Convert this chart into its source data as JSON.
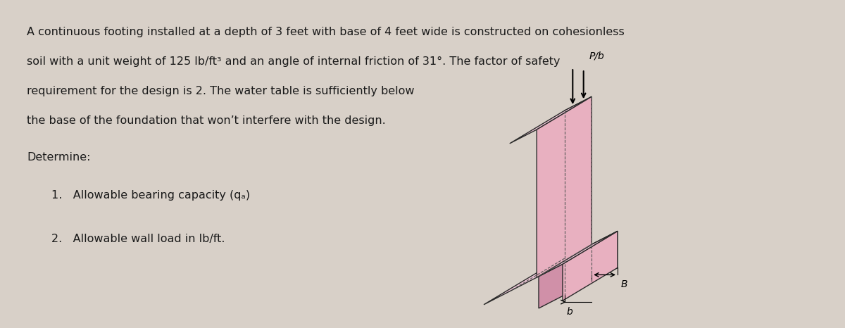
{
  "bg_color": "#d8d0c8",
  "text_color": "#1a1a1a",
  "line1": "A continuous footing installed at a depth of 3 feet with base of 4 feet wide is constructed on cohesionless",
  "line2": "soil with a unit weight of 125 lb/ft³ and an angle of internal friction of 31°. The factor of safety",
  "line3": "requirement for the design is 2. The water table is sufficiently below",
  "line4": "the base of the foundation that won’t interfere with the design.",
  "determine_label": "Determine:",
  "item1": "1.   Allowable bearing capacity (qₐ)",
  "item2": "2.   Allowable wall load in lb/ft.",
  "label_Pb": "P/b",
  "label_b": "b",
  "label_B": "B",
  "pink_face": "#e8b0c0",
  "pink_dark": "#d090a8",
  "pink_light": "#f0c8d8",
  "outline_color": "#2a2a2a",
  "dashed_color": "#555555"
}
